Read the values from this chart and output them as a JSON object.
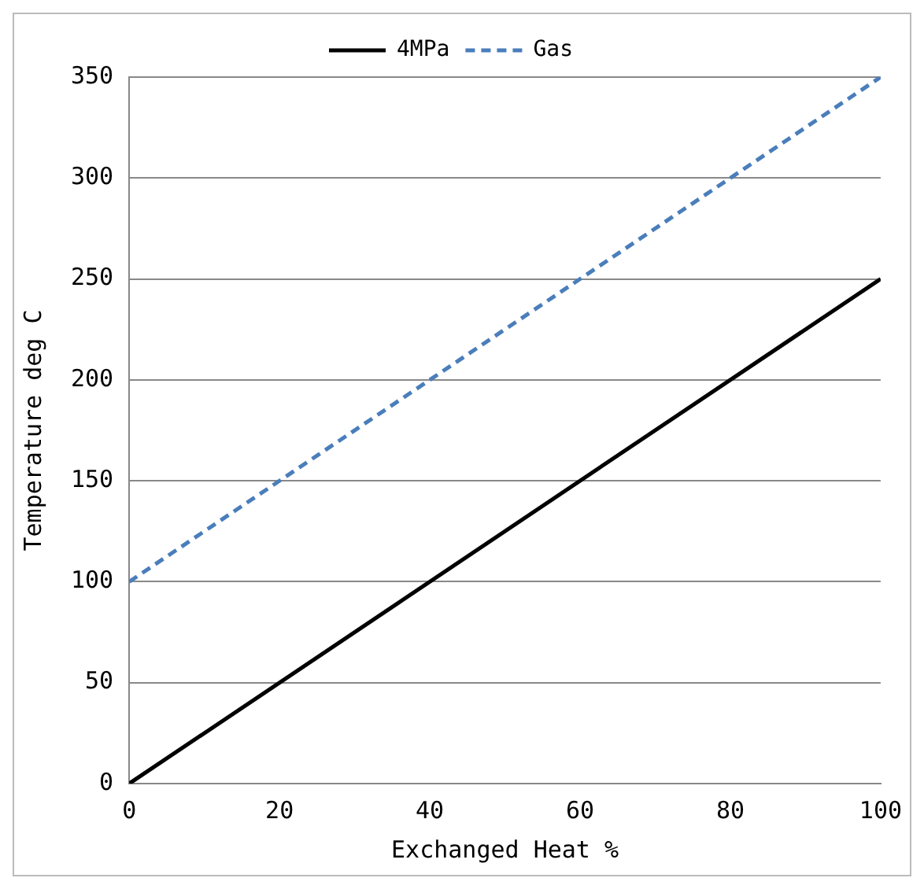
{
  "chart_data": {
    "type": "line",
    "xlabel": "Exchanged Heat %",
    "ylabel": "Temperature deg C",
    "x": [
      0,
      100
    ],
    "series": [
      {
        "name": "4MPa",
        "color": "#000000",
        "values": [
          0,
          250
        ],
        "line_style": "solid"
      },
      {
        "name": "Gas",
        "color": "#4a7ebb",
        "values": [
          100,
          350
        ],
        "line_style": "dashed"
      }
    ],
    "xlim": [
      0,
      100
    ],
    "xticks": [
      0,
      20,
      40,
      60,
      80,
      100
    ],
    "ylim": [
      0,
      350
    ],
    "yticks": [
      0,
      50,
      100,
      150,
      200,
      250,
      300,
      350
    ],
    "grid": "y",
    "legend": "top",
    "marker": "none"
  }
}
